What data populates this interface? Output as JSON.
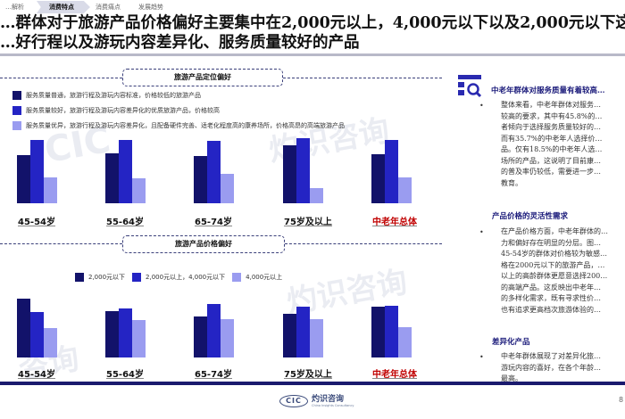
{
  "nav": {
    "tabs": [
      {
        "label": "…解析",
        "active": false
      },
      {
        "label": "消费特点",
        "active": true
      },
      {
        "label": "消费痛点",
        "active": false
      },
      {
        "label": "发展趋势",
        "active": false
      }
    ]
  },
  "header": {
    "title_line1": "…群体对于旅游产品价格偏好主要集中在2,000元以上，4,000元以下以及2,000元以下这两个价…",
    "title_line2": "…好行程以及游玩内容差异化、服务质量较好的产品"
  },
  "section_positioning": {
    "heading": "旅游产品定位偏好",
    "legend": [
      {
        "label": "服务质量普通，旅游行程及游玩内容标准，价格较低的旅游产品",
        "color": "#12126a"
      },
      {
        "label": "服务质量较好，旅游行程及游玩内容差异化的优质旅游产品，价格较高",
        "color": "#2424c4"
      },
      {
        "label": "服务质量优异，旅游行程及游玩内容差异化，且配备硬件完善、适老化程度高的康养场所，价格高昂的高端旅游产品",
        "color": "#9a9cf0"
      }
    ]
  },
  "section_price": {
    "heading": "旅游产品价格偏好",
    "legend": [
      {
        "label": "2,000元以下",
        "color": "#12126a"
      },
      {
        "label": "2,000元以上，4,000元以下",
        "color": "#2424c4"
      },
      {
        "label": "4,000元以上",
        "color": "#9a9cf0"
      }
    ]
  },
  "chart_data": [
    {
      "type": "bar",
      "title": "旅游产品定位偏好",
      "categories": [
        "45-54岁",
        "55-64岁",
        "65-74岁",
        "75岁及以上",
        "中老年总体"
      ],
      "series": [
        {
          "name": "服务质量普通，旅游行程及游玩内容标准，价格较低的旅游产品",
          "values": [
            35,
            36,
            34,
            42,
            35.7
          ]
        },
        {
          "name": "服务质量较好，旅游行程及游玩内容差异化的优质旅游产品，价格较高",
          "values": [
            46,
            46,
            45,
            47,
            45.8
          ]
        },
        {
          "name": "服务质量优异，旅游行程及游玩内容差异化，且配备硬件完善、适老化程度高的康养场所，价格高昂的高端旅游产品",
          "values": [
            19,
            18,
            21,
            11,
            18.5
          ]
        }
      ],
      "xlabel": "",
      "ylabel": "",
      "unit": "%",
      "legend_position": "top-left",
      "grid": false
    },
    {
      "type": "bar",
      "title": "旅游产品价格偏好",
      "categories": [
        "45-54岁",
        "55-64岁",
        "65-74岁",
        "75岁及以上",
        "中老年总体"
      ],
      "series": [
        {
          "name": "2,000元以下",
          "values": [
            44,
            35,
            31,
            33,
            38
          ]
        },
        {
          "name": "2,000元以上，4,000元以下",
          "values": [
            34,
            37,
            40,
            38,
            39
          ]
        },
        {
          "name": "4,000元以上",
          "values": [
            22,
            28,
            29,
            29,
            23
          ]
        }
      ],
      "xlabel": "",
      "ylabel": "",
      "unit": "%",
      "legend_position": "top-center",
      "grid": false
    }
  ],
  "categories_display": [
    "45-54岁",
    "55-64岁",
    "65-74岁",
    "75岁及以上",
    "中老年总体"
  ],
  "right_panel": {
    "sections": [
      {
        "title": "中老年群体对服务质量有着较高…",
        "lines": [
          "整体来看，中老年群体对服务…",
          "较高的要求，其中有45.8%的…",
          "者倾向于选择服务质量较好的…",
          "而有35.7%的中老年人选择价…",
          "品。仅有18.5%的中老年人选…",
          "场所的产品，这说明了目前康…",
          "的普及率仍较低，需要进一步…",
          "教育。"
        ]
      },
      {
        "title": "产品价格的灵活性需求",
        "lines": [
          "在产品价格方面，中老年群体的…",
          "力和偏好存在明显的分层。图…",
          "45-54岁的群体对价格较为敏感…",
          "格在2000元以下的旅游产品，…",
          "以上的高龄群体更愿意选择200…",
          "的高端产品。这反映出中老年…",
          "的多样化需求，既有寻求性价…",
          "也有追求更高档次旅游体验的…"
        ]
      },
      {
        "title": "差异化产品",
        "lines": [
          "中老年群体展现了对差异化旅…",
          "游玩内容的喜好，在各个年龄…",
          "最高。"
        ]
      }
    ]
  },
  "footer": {
    "logo_mark": "CIC",
    "logo_cn": "灼识咨询",
    "logo_en": "China Insights Consultancy",
    "page": "8"
  },
  "colors": {
    "series_dark": "#12126a",
    "series_mid": "#2424c4",
    "series_light": "#9a9cf0",
    "accent_red": "#c00000",
    "footer_bar": "#1a1a6e"
  }
}
